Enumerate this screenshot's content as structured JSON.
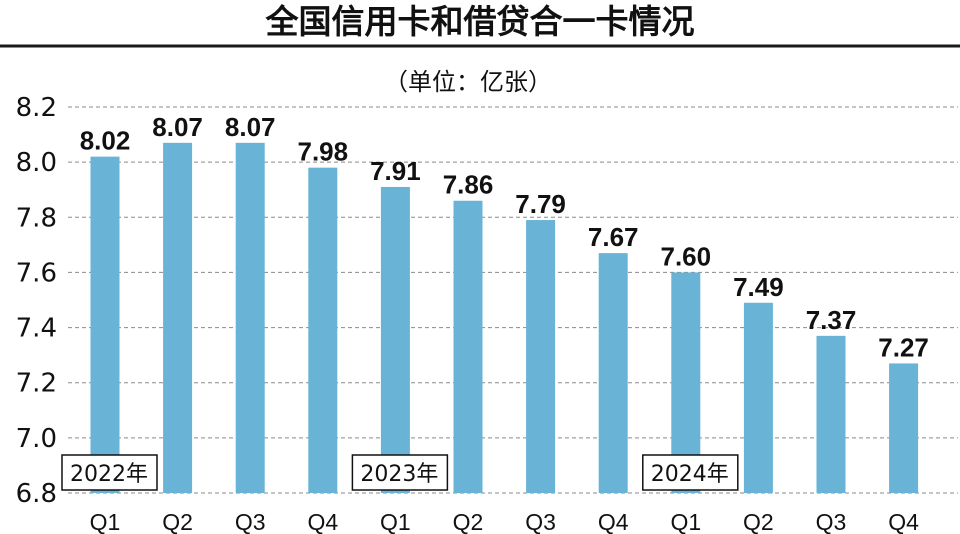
{
  "chart_data": {
    "type": "bar",
    "title": "全国信用卡和借贷合一卡情况",
    "subtitle": "（单位：亿张）",
    "categories": [
      "Q1",
      "Q2",
      "Q3",
      "Q4",
      "Q1",
      "Q2",
      "Q3",
      "Q4",
      "Q1",
      "Q2",
      "Q3",
      "Q4"
    ],
    "values": [
      8.02,
      8.07,
      8.07,
      7.98,
      7.91,
      7.86,
      7.79,
      7.67,
      7.6,
      7.49,
      7.37,
      7.27
    ],
    "year_groups": [
      {
        "label": "2022年",
        "start": 0
      },
      {
        "label": "2023年",
        "start": 4
      },
      {
        "label": "2024年",
        "start": 8
      }
    ],
    "yticks": [
      6.8,
      7.0,
      7.2,
      7.4,
      7.6,
      7.8,
      8.0,
      8.2
    ],
    "ylim": [
      6.8,
      8.2
    ],
    "xlabel": "",
    "ylabel": "",
    "grid": true,
    "legend": "none"
  },
  "colors": {
    "bar": "#69b3d6",
    "text": "#111111",
    "rule": "#1a1a1a"
  }
}
